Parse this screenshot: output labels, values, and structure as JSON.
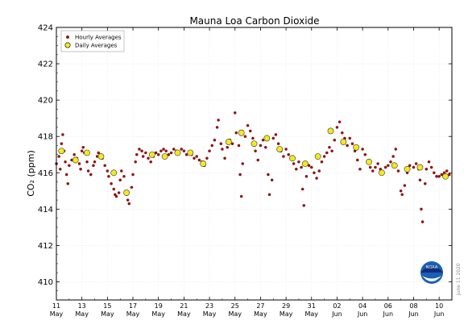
{
  "chart_data": {
    "type": "scatter",
    "title": "Mauna Loa Carbon Dioxide",
    "ylabel": "CO₂ (ppm)",
    "xlabel": "",
    "ylim": [
      409,
      424
    ],
    "yticks": [
      410,
      412,
      414,
      416,
      418,
      420,
      422,
      424
    ],
    "x_start": "2020-05-11",
    "x_end": "2020-06-11",
    "xticks": [
      {
        "day": "11",
        "month": "May",
        "x": 0
      },
      {
        "day": "13",
        "month": "May",
        "x": 2
      },
      {
        "day": "15",
        "month": "May",
        "x": 4
      },
      {
        "day": "17",
        "month": "May",
        "x": 6
      },
      {
        "day": "19",
        "month": "May",
        "x": 8
      },
      {
        "day": "21",
        "month": "May",
        "x": 10
      },
      {
        "day": "23",
        "month": "May",
        "x": 12
      },
      {
        "day": "25",
        "month": "May",
        "x": 14
      },
      {
        "day": "27",
        "month": "May",
        "x": 16
      },
      {
        "day": "29",
        "month": "May",
        "x": 18
      },
      {
        "day": "31",
        "month": "May",
        "x": 20
      },
      {
        "day": "02",
        "month": "Jun",
        "x": 22
      },
      {
        "day": "04",
        "month": "Jun",
        "x": 24
      },
      {
        "day": "06",
        "month": "Jun",
        "x": 26
      },
      {
        "day": "08",
        "month": "Jun",
        "x": 28
      },
      {
        "day": "10",
        "month": "Jun",
        "x": 30
      }
    ],
    "grid": true,
    "legend_position": "top-left",
    "series": [
      {
        "name": "Hourly Averages",
        "marker": "small-dot",
        "color": "#a01010",
        "points": [
          [
            0.0,
            416.5
          ],
          [
            0.2,
            416.9
          ],
          [
            0.3,
            416.2
          ],
          [
            0.4,
            417.6
          ],
          [
            0.5,
            418.1
          ],
          [
            0.6,
            417.2
          ],
          [
            0.7,
            416.6
          ],
          [
            0.8,
            415.9
          ],
          [
            0.9,
            415.4
          ],
          [
            1.0,
            416.4
          ],
          [
            1.2,
            416.7
          ],
          [
            1.4,
            417.0
          ],
          [
            1.6,
            416.8
          ],
          [
            1.8,
            416.5
          ],
          [
            1.9,
            416.2
          ],
          [
            2.0,
            417.2
          ],
          [
            2.1,
            417.4
          ],
          [
            2.2,
            417.1
          ],
          [
            2.4,
            416.6
          ],
          [
            2.5,
            416.1
          ],
          [
            2.7,
            415.9
          ],
          [
            2.9,
            416.4
          ],
          [
            3.0,
            416.6
          ],
          [
            3.2,
            416.9
          ],
          [
            3.3,
            417.1
          ],
          [
            3.5,
            417.0
          ],
          [
            3.6,
            416.8
          ],
          [
            3.8,
            416.4
          ],
          [
            4.0,
            416.1
          ],
          [
            4.1,
            415.8
          ],
          [
            4.3,
            415.4
          ],
          [
            4.5,
            415.1
          ],
          [
            4.6,
            414.8
          ],
          [
            4.7,
            414.7
          ],
          [
            4.9,
            414.9
          ],
          [
            5.0,
            415.6
          ],
          [
            5.1,
            416.1
          ],
          [
            5.3,
            415.8
          ],
          [
            5.5,
            414.8
          ],
          [
            5.6,
            414.5
          ],
          [
            5.7,
            414.3
          ],
          [
            5.9,
            415.2
          ],
          [
            6.0,
            415.9
          ],
          [
            6.2,
            416.6
          ],
          [
            6.3,
            417.0
          ],
          [
            6.5,
            417.3
          ],
          [
            6.7,
            417.2
          ],
          [
            6.8,
            416.9
          ],
          [
            7.0,
            417.1
          ],
          [
            7.2,
            416.8
          ],
          [
            7.4,
            416.6
          ],
          [
            7.6,
            416.9
          ],
          [
            7.8,
            417.1
          ],
          [
            8.0,
            417.0
          ],
          [
            8.2,
            417.2
          ],
          [
            8.4,
            417.3
          ],
          [
            8.6,
            417.2
          ],
          [
            8.8,
            417.0
          ],
          [
            9.0,
            417.1
          ],
          [
            9.2,
            417.3
          ],
          [
            9.4,
            417.2
          ],
          [
            9.6,
            417.1
          ],
          [
            9.8,
            417.3
          ],
          [
            10.0,
            417.2
          ],
          [
            10.2,
            417.0
          ],
          [
            10.4,
            417.1
          ],
          [
            10.6,
            417.0
          ],
          [
            10.8,
            416.8
          ],
          [
            11.0,
            416.9
          ],
          [
            11.2,
            416.7
          ],
          [
            11.4,
            416.6
          ],
          [
            11.6,
            416.4
          ],
          [
            11.8,
            416.8
          ],
          [
            12.0,
            417.2
          ],
          [
            12.2,
            417.5
          ],
          [
            12.4,
            417.8
          ],
          [
            12.6,
            418.5
          ],
          [
            12.7,
            418.9
          ],
          [
            12.9,
            417.6
          ],
          [
            13.0,
            417.3
          ],
          [
            13.2,
            416.8
          ],
          [
            13.4,
            417.4
          ],
          [
            13.6,
            417.8
          ],
          [
            13.8,
            417.6
          ],
          [
            14.0,
            419.3
          ],
          [
            14.1,
            418.2
          ],
          [
            14.3,
            417.5
          ],
          [
            14.4,
            415.9
          ],
          [
            14.5,
            414.7
          ],
          [
            14.6,
            416.5
          ],
          [
            14.8,
            418.0
          ],
          [
            15.0,
            418.6
          ],
          [
            15.2,
            418.3
          ],
          [
            15.4,
            417.9
          ],
          [
            15.6,
            417.2
          ],
          [
            15.8,
            416.7
          ],
          [
            16.0,
            417.5
          ],
          [
            16.2,
            417.8
          ],
          [
            16.4,
            417.4
          ],
          [
            16.6,
            415.9
          ],
          [
            16.7,
            414.8
          ],
          [
            16.9,
            415.6
          ],
          [
            17.0,
            417.9
          ],
          [
            17.2,
            418.1
          ],
          [
            17.4,
            417.6
          ],
          [
            17.6,
            417.2
          ],
          [
            17.8,
            416.9
          ],
          [
            18.0,
            417.3
          ],
          [
            18.2,
            417.0
          ],
          [
            18.4,
            416.8
          ],
          [
            18.6,
            416.5
          ],
          [
            18.8,
            416.2
          ],
          [
            19.0,
            416.6
          ],
          [
            19.2,
            416.3
          ],
          [
            19.3,
            415.1
          ],
          [
            19.4,
            414.2
          ],
          [
            19.6,
            415.8
          ],
          [
            19.8,
            416.4
          ],
          [
            20.0,
            416.3
          ],
          [
            20.2,
            416.0
          ],
          [
            20.4,
            415.7
          ],
          [
            20.6,
            416.1
          ],
          [
            20.8,
            416.6
          ],
          [
            21.0,
            416.9
          ],
          [
            21.2,
            417.1
          ],
          [
            21.4,
            417.4
          ],
          [
            21.6,
            417.2
          ],
          [
            21.8,
            417.8
          ],
          [
            22.0,
            418.5
          ],
          [
            22.2,
            418.8
          ],
          [
            22.4,
            418.2
          ],
          [
            22.6,
            417.9
          ],
          [
            22.8,
            417.5
          ],
          [
            23.0,
            417.9
          ],
          [
            23.2,
            417.6
          ],
          [
            23.4,
            417.2
          ],
          [
            23.6,
            416.7
          ],
          [
            23.8,
            416.2
          ],
          [
            24.0,
            417.3
          ],
          [
            24.2,
            417.0
          ],
          [
            24.4,
            416.6
          ],
          [
            24.6,
            416.3
          ],
          [
            24.8,
            416.1
          ],
          [
            25.0,
            416.3
          ],
          [
            25.2,
            416.5
          ],
          [
            25.4,
            416.2
          ],
          [
            25.6,
            416.0
          ],
          [
            25.8,
            416.3
          ],
          [
            26.0,
            416.4
          ],
          [
            26.2,
            416.6
          ],
          [
            26.4,
            416.9
          ],
          [
            26.6,
            417.3
          ],
          [
            26.8,
            416.1
          ],
          [
            27.0,
            415.0
          ],
          [
            27.1,
            414.8
          ],
          [
            27.3,
            415.3
          ],
          [
            27.5,
            416.0
          ],
          [
            27.7,
            416.4
          ],
          [
            28.0,
            416.3
          ],
          [
            28.2,
            416.5
          ],
          [
            28.4,
            416.2
          ],
          [
            28.5,
            415.6
          ],
          [
            28.6,
            414.0
          ],
          [
            28.7,
            413.3
          ],
          [
            28.9,
            415.4
          ],
          [
            29.0,
            416.2
          ],
          [
            29.2,
            416.6
          ],
          [
            29.4,
            416.3
          ],
          [
            29.6,
            416.0
          ],
          [
            29.8,
            415.8
          ],
          [
            30.0,
            415.8
          ],
          [
            30.2,
            415.9
          ],
          [
            30.4,
            416.0
          ],
          [
            30.6,
            416.1
          ],
          [
            30.8,
            415.9
          ]
        ]
      },
      {
        "name": "Daily Averages",
        "marker": "large-circle",
        "color": "#f2ea1c",
        "points": [
          [
            0.4,
            417.2
          ],
          [
            1.5,
            416.7
          ],
          [
            2.4,
            417.1
          ],
          [
            3.5,
            416.9
          ],
          [
            4.5,
            416.0
          ],
          [
            5.5,
            414.9
          ],
          [
            7.5,
            417.0
          ],
          [
            8.5,
            416.9
          ],
          [
            9.5,
            417.1
          ],
          [
            10.5,
            417.1
          ],
          [
            11.5,
            416.5
          ],
          [
            13.5,
            417.7
          ],
          [
            14.5,
            418.2
          ],
          [
            15.5,
            417.6
          ],
          [
            16.5,
            417.9
          ],
          [
            17.5,
            417.3
          ],
          [
            18.5,
            416.8
          ],
          [
            19.5,
            416.5
          ],
          [
            20.5,
            416.9
          ],
          [
            21.5,
            418.3
          ],
          [
            22.5,
            417.7
          ],
          [
            23.5,
            417.4
          ],
          [
            24.5,
            416.6
          ],
          [
            25.5,
            416.0
          ],
          [
            26.5,
            416.4
          ],
          [
            27.5,
            416.2
          ],
          [
            28.5,
            416.3
          ],
          [
            30.5,
            415.8
          ]
        ]
      }
    ],
    "credit": "june 11 2020",
    "logo_text": "NOAA"
  }
}
